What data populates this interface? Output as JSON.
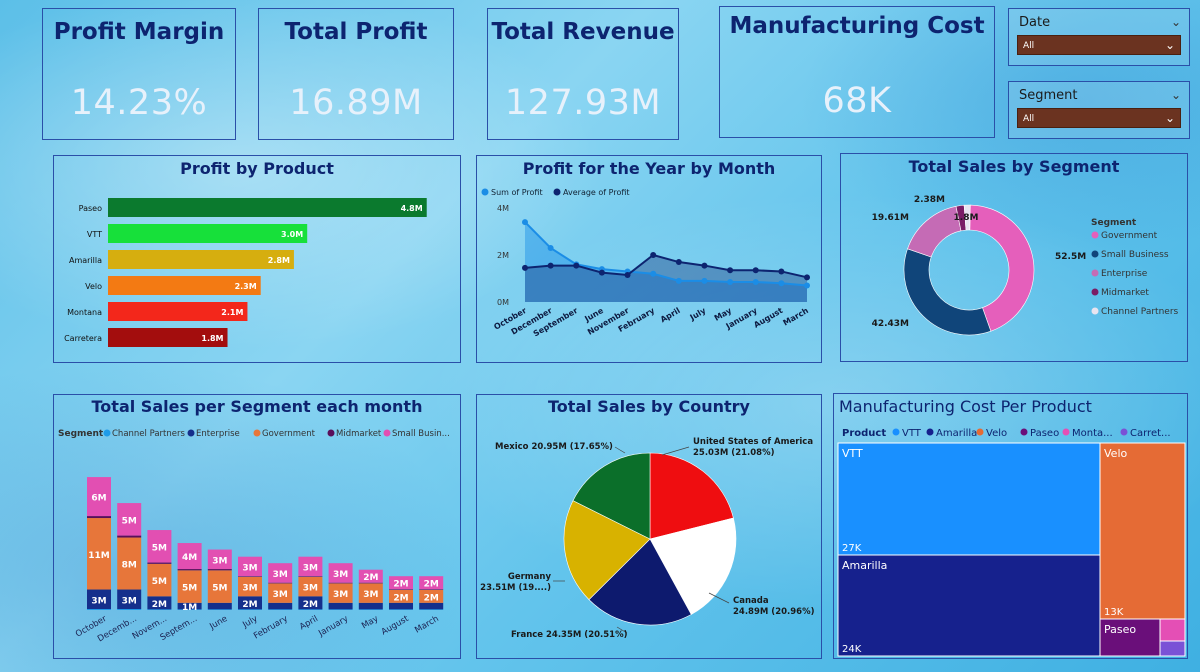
{
  "kpis": [
    {
      "title": "Profit Margin",
      "value": "14.23%"
    },
    {
      "title": "Total Profit",
      "value": "16.89M"
    },
    {
      "title": "Total Revenue",
      "value": "127.93M"
    },
    {
      "title": "Manufacturing Cost",
      "value": "68K"
    }
  ],
  "slicers": [
    {
      "label": "Date",
      "value": "All"
    },
    {
      "label": "Segment",
      "value": "All"
    }
  ],
  "colors": {
    "title": "#0d2470",
    "border": "#2a4fa8",
    "slicer": "#6b3320"
  },
  "icons": {
    "chevron": "chevron-down-icon"
  },
  "chart_data": [
    {
      "id": "profit_by_product",
      "type": "bar",
      "title": "Profit by Product",
      "orientation": "horizontal",
      "categories": [
        "Paseo",
        "VTT",
        "Amarilla",
        "Velo",
        "Montana",
        "Carretera"
      ],
      "values": [
        4.8,
        3.0,
        2.8,
        2.3,
        2.1,
        1.8
      ],
      "labels": [
        "4.8M",
        "3.0M",
        "2.8M",
        "2.3M",
        "2.1M",
        "1.8M"
      ],
      "colors": [
        "#0b7a2e",
        "#17e03a",
        "#d6ae0f",
        "#f37a13",
        "#f3271b",
        "#a30d0d"
      ],
      "xlim": [
        0,
        5
      ]
    },
    {
      "id": "profit_by_month",
      "type": "area",
      "title": "Profit for the Year by Month",
      "categories": [
        "October",
        "December",
        "September",
        "June",
        "November",
        "February",
        "April",
        "July",
        "May",
        "January",
        "August",
        "March"
      ],
      "series": [
        {
          "name": "Sum of  Profit",
          "values": [
            3.4,
            2.3,
            1.6,
            1.4,
            1.3,
            1.2,
            0.9,
            0.9,
            0.85,
            0.85,
            0.8,
            0.7
          ],
          "color": "#1b8de6"
        },
        {
          "name": "Average of  Profit",
          "values": [
            1.45,
            1.55,
            1.55,
            1.25,
            1.15,
            2.0,
            1.7,
            1.55,
            1.35,
            1.35,
            1.3,
            1.05
          ],
          "color": "#0d2470"
        }
      ],
      "yticks": [
        "0M",
        "2M",
        "4M"
      ],
      "ylim": [
        0,
        4
      ]
    },
    {
      "id": "sales_by_segment",
      "type": "pie",
      "donut": true,
      "title": "Total Sales by Segment",
      "legend_title": "Segment",
      "categories": [
        "Government",
        "Small Business",
        "Enterprise",
        "Midmarket",
        "Channel Partners"
      ],
      "values": [
        52.5,
        42.43,
        19.61,
        2.38,
        1.8
      ],
      "labels": [
        "52.5M",
        "42.43M",
        "19.61M",
        "2.38M",
        "1.8M"
      ],
      "colors": [
        "#e55fbb",
        "#10457a",
        "#c56bb5",
        "#7a1d66",
        "#e8e4f0"
      ]
    },
    {
      "id": "sales_segment_month",
      "type": "bar",
      "stacked": true,
      "title": "Total Sales per Segment each month",
      "legend_title": "Segment",
      "legend": [
        "Channel Partners",
        "Enterprise",
        "Government",
        "Midmarket",
        "Small Busin..."
      ],
      "categories": [
        "October",
        "Decemb...",
        "Novem...",
        "Septem...",
        "June",
        "July",
        "February",
        "April",
        "January",
        "May",
        "August",
        "March"
      ],
      "series": [
        {
          "name": "Channel Partners",
          "color": "#1f9be8",
          "values": [
            0.15,
            0.15,
            0.1,
            0.1,
            0.1,
            0.1,
            0.1,
            0.1,
            0.1,
            0.1,
            0.1,
            0.1
          ]
        },
        {
          "name": "Enterprise",
          "color": "#152f8c",
          "values": [
            3,
            3,
            2,
            1,
            1,
            2,
            1,
            2,
            1,
            1,
            1,
            1
          ],
          "labels": [
            "3M",
            "3M",
            "2M",
            "1M",
            "",
            "2M",
            "",
            "2M",
            "",
            "",
            "",
            ""
          ]
        },
        {
          "name": "Government",
          "color": "#e7763a",
          "values": [
            11,
            8,
            5,
            5,
            5,
            3,
            3,
            3,
            3,
            3,
            2,
            2
          ],
          "labels": [
            "11M",
            "8M",
            "5M",
            "5M",
            "5M",
            "3M",
            "3M",
            "3M",
            "3M",
            "3M",
            "2M",
            "2M"
          ]
        },
        {
          "name": "Midmarket",
          "color": "#5a0f5a",
          "values": [
            0.3,
            0.3,
            0.2,
            0.2,
            0.2,
            0.1,
            0.1,
            0.1,
            0.1,
            0.1,
            0.1,
            0.1
          ]
        },
        {
          "name": "Small Business",
          "color": "#e24fb2",
          "values": [
            6,
            5,
            5,
            4,
            3,
            3,
            3,
            3,
            3,
            2,
            2,
            2
          ],
          "labels": [
            "6M",
            "5M",
            "5M",
            "4M",
            "3M",
            "3M",
            "3M",
            "3M",
            "3M",
            "2M",
            "2M",
            "2M"
          ]
        }
      ]
    },
    {
      "id": "sales_by_country",
      "type": "pie",
      "title": "Total Sales by Country",
      "categories": [
        "United States of America",
        "Canada",
        "France",
        "Germany",
        "Mexico"
      ],
      "values": [
        25.03,
        24.89,
        24.35,
        23.51,
        20.95
      ],
      "labels": [
        [
          "United States of America",
          "25.03M (21.08%)"
        ],
        [
          "Canada",
          "24.89M (20.96%)"
        ],
        [
          "France 24.35M (20.51%)"
        ],
        [
          "Germany",
          "23.51M (19....)"
        ],
        [
          "Mexico 20.95M (17.65%)"
        ]
      ],
      "colors": [
        "#ef0d10",
        "#ffffff",
        "#0d1a6e",
        "#d8b200",
        "#0b6f2a"
      ]
    },
    {
      "id": "mfg_cost_product",
      "type": "treemap",
      "title": "Manufacturing Cost Per Product",
      "legend_title": "Product",
      "legend": [
        "VTT",
        "Amarilla",
        "Velo",
        "Paseo",
        "Monta...",
        "Carret..."
      ],
      "legend_colors": [
        "#1990ff",
        "#16218d",
        "#e56b35",
        "#6a0f7a",
        "#e44fb5",
        "#7a52d6"
      ],
      "items": [
        {
          "name": "VTT",
          "value_label": "27K",
          "color": "#1990ff"
        },
        {
          "name": "Amarilla",
          "value_label": "24K",
          "color": "#16218d"
        },
        {
          "name": "Velo",
          "value_label": "13K",
          "color": "#e56b35"
        },
        {
          "name": "Paseo",
          "value_label": "",
          "color": "#6a0f7a"
        },
        {
          "name": "",
          "value_label": "",
          "color": "#e44fb5"
        },
        {
          "name": "",
          "value_label": "",
          "color": "#7a52d6"
        }
      ]
    }
  ]
}
